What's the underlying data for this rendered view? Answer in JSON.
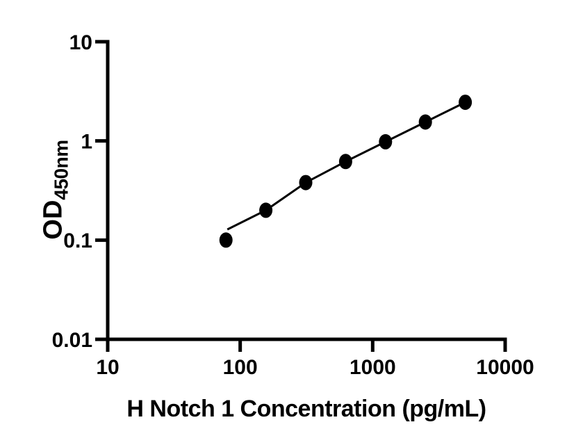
{
  "figure": {
    "background_color": "#ffffff",
    "axis_color": "#000000",
    "x_axis_title": "H Notch 1 Concentration (pg/mL)",
    "y_axis_title_main": "OD",
    "y_axis_title_subscript": "450nm"
  },
  "chart_data": {
    "type": "scatter",
    "title": "",
    "xlabel": "H Notch 1 Concentration (pg/mL)",
    "ylabel": "OD450nm",
    "x_scale": "log10",
    "y_scale": "log10",
    "xlim": [
      10,
      10000
    ],
    "ylim": [
      0.01,
      10
    ],
    "x_tick_values": [
      10,
      100,
      1000,
      10000
    ],
    "x_tick_labels": [
      "10",
      "100",
      "1000",
      "10000"
    ],
    "y_tick_values": [
      10,
      1,
      0.1,
      0.01
    ],
    "y_tick_labels": [
      "10",
      "1",
      "0.1",
      "0.01"
    ],
    "grid": false,
    "legend": "none",
    "marker_color": "#000000",
    "line_color": "#000000",
    "points": {
      "x": [
        78.125,
        156.25,
        312.5,
        625,
        1250,
        2500,
        5000
      ],
      "y": [
        0.1,
        0.2,
        0.38,
        0.62,
        0.98,
        1.55,
        2.45
      ]
    },
    "fit_line": {
      "x": [
        80,
        156.25,
        312.5,
        625,
        1250,
        2500,
        5000
      ],
      "y": [
        0.128,
        0.2,
        0.38,
        0.62,
        0.98,
        1.55,
        2.45
      ]
    }
  }
}
